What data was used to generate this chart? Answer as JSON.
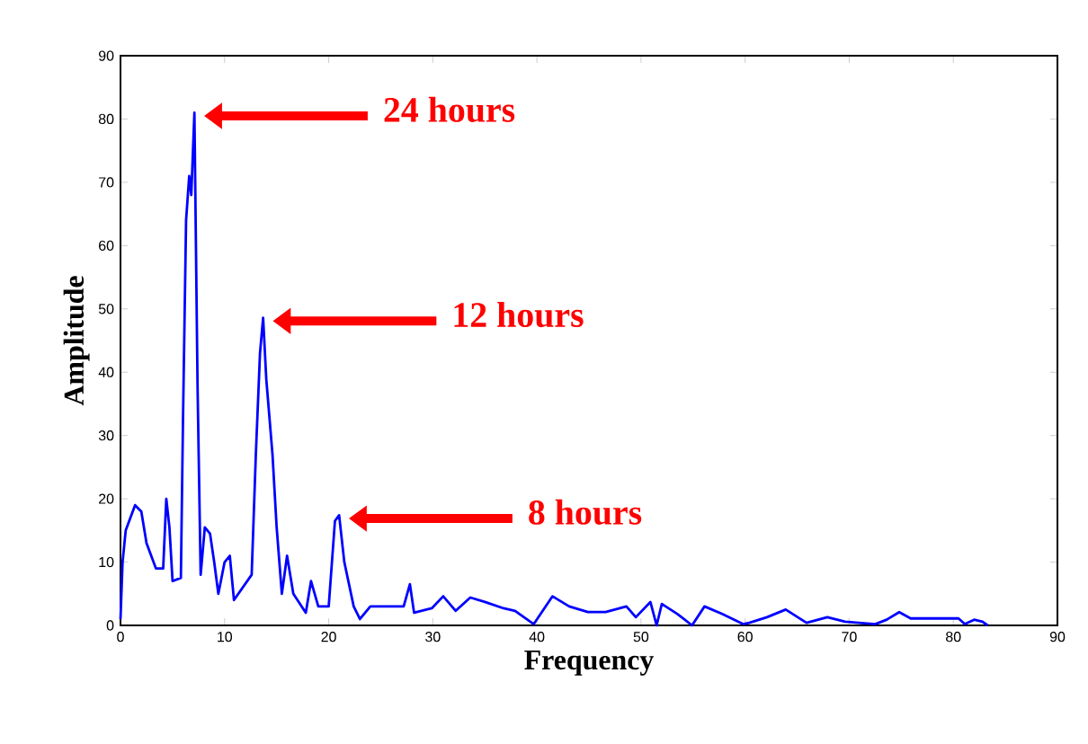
{
  "chart_data": {
    "type": "line",
    "xlabel": "Frequency",
    "ylabel": "Amplitude",
    "xlim": [
      0,
      90
    ],
    "ylim": [
      0,
      90
    ],
    "xticks": [
      0,
      10,
      20,
      30,
      40,
      50,
      60,
      70,
      80,
      90
    ],
    "yticks": [
      0,
      10,
      20,
      30,
      40,
      50,
      60,
      70,
      80,
      90
    ],
    "grid": false,
    "marker": "none",
    "line_style": "solid",
    "annotations": [
      "24 hours",
      "12 hours",
      "8 hours"
    ],
    "series": [
      {
        "color": "#0000ff",
        "x": [
          0,
          0.2,
          0.5,
          1.4,
          2,
          2.5,
          3.4,
          4.1,
          4.4,
          4.7,
          5,
          5.8,
          6,
          6.3,
          6.6,
          6.8,
          7.1,
          7.4,
          7.7,
          8.1,
          8.6,
          9,
          9.4,
          10,
          10.5,
          10.9,
          12.6,
          13,
          13.4,
          13.7,
          14,
          14.6,
          15,
          15.5,
          16,
          16.6,
          17.8,
          18.3,
          19,
          20,
          20.6,
          21,
          21.5,
          22.4,
          23,
          24,
          25.8,
          27.2,
          27.8,
          28.2,
          29.9,
          31,
          32.2,
          33.6,
          35,
          36.8,
          37.9,
          39.7,
          41.5,
          43.1,
          44.9,
          46.6,
          48.6,
          49.5,
          50.9,
          51.5,
          52,
          53.5,
          54.9,
          56.1,
          57.8,
          59.8,
          60.4,
          62.1,
          63.9,
          65.9,
          67.9,
          69.6,
          72.5,
          73.6,
          74.8,
          75.9,
          80.5,
          81.1,
          82,
          82.8,
          83.3
        ],
        "values": [
          1,
          10,
          15,
          19,
          18,
          13,
          9,
          9,
          20,
          15.5,
          7,
          7.5,
          32,
          64,
          71,
          68,
          81,
          38,
          8,
          15.5,
          14.5,
          10,
          5,
          10,
          11,
          4,
          8,
          27,
          43,
          48.6,
          39,
          27,
          15.5,
          5,
          11,
          5,
          2,
          7,
          3,
          3,
          16.5,
          17.4,
          10,
          3,
          1,
          3,
          3,
          3,
          6.5,
          2,
          2.7,
          4.6,
          2.3,
          4.4,
          3.7,
          2.7,
          2.3,
          0.2,
          4.6,
          3,
          2.1,
          2.1,
          3,
          1.3,
          3.7,
          0,
          3.4,
          1.8,
          0,
          3,
          1.8,
          0.2,
          0.4,
          1.3,
          2.5,
          0.4,
          1.3,
          0.6,
          0.2,
          0.9,
          2.1,
          1.1,
          1.1,
          0.2,
          0.9,
          0.6,
          0
        ]
      }
    ]
  }
}
